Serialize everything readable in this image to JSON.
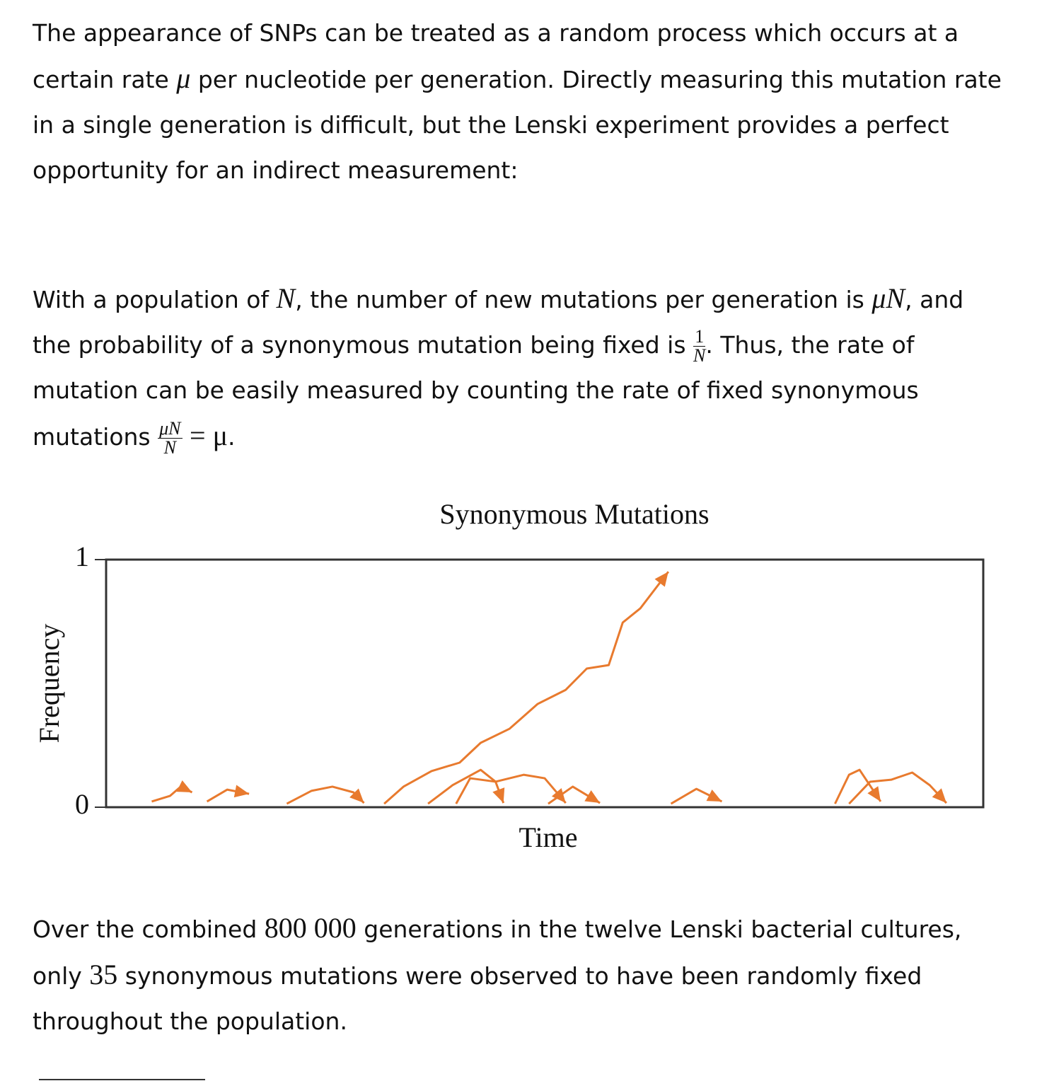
{
  "intro": {
    "text_1": "The appearance of SNPs can be treated as a random process which occurs at a certain rate ",
    "mu": "μ",
    "text_2": " per nucleotide per generation. Directly measuring this mutation rate in a single generation is difficult, but the Lenski experiment provides a perfect opportunity for an indirect measurement:"
  },
  "derivation": {
    "text_1": "With a population of ",
    "n": "N",
    "text_2": ", the number of new mutations per generation is ",
    "mu_n": "μN",
    "text_3": ", and the probability of a synonymous mutation being fixed is ",
    "fraction_1": {
      "numerator": "1",
      "denominator": "N"
    },
    "text_4": ". Thus, the rate of mutation can be easily measured by counting the rate of fixed synonymous mutations ",
    "fraction_2": {
      "numerator": "μN",
      "denominator": "N"
    },
    "equals": "= μ",
    "text_5": "."
  },
  "chart_data": {
    "type": "line",
    "title": "Synonymous Mutations",
    "x_label": "Time",
    "y_label": "Frequency",
    "ylim": [
      0,
      1
    ],
    "yticks": [
      0,
      1
    ],
    "color": "#e87a2e",
    "series": [
      {
        "x": [
          0.052,
          0.073,
          0.085,
          0.098
        ],
        "values": [
          0.023,
          0.046,
          0.083,
          0.06
        ]
      },
      {
        "x": [
          0.115,
          0.138,
          0.163
        ],
        "values": [
          0.023,
          0.071,
          0.054
        ]
      },
      {
        "x": [
          0.206,
          0.234,
          0.258,
          0.282,
          0.294
        ],
        "values": [
          0.014,
          0.066,
          0.083,
          0.06,
          0.017
        ]
      },
      {
        "x": [
          0.317,
          0.339,
          0.371,
          0.403,
          0.427,
          0.46,
          0.492,
          0.524,
          0.548,
          0.573,
          0.589,
          0.609,
          0.641
        ],
        "values": [
          0.014,
          0.083,
          0.146,
          0.18,
          0.26,
          0.317,
          0.417,
          0.474,
          0.56,
          0.574,
          0.746,
          0.803,
          0.951
        ]
      },
      {
        "x": [
          0.367,
          0.395,
          0.427,
          0.444,
          0.453
        ],
        "values": [
          0.014,
          0.089,
          0.151,
          0.103,
          0.017
        ]
      },
      {
        "x": [
          0.399,
          0.415,
          0.444,
          0.476,
          0.5,
          0.524
        ],
        "values": [
          0.014,
          0.117,
          0.103,
          0.131,
          0.117,
          0.017
        ]
      },
      {
        "x": [
          0.504,
          0.532,
          0.563
        ],
        "values": [
          0.014,
          0.083,
          0.017
        ]
      },
      {
        "x": [
          0.644,
          0.673,
          0.702
        ],
        "values": [
          0.014,
          0.074,
          0.023
        ]
      },
      {
        "x": [
          0.831,
          0.847,
          0.859,
          0.883
        ],
        "values": [
          0.014,
          0.131,
          0.151,
          0.023
        ]
      },
      {
        "x": [
          0.847,
          0.871,
          0.895,
          0.919,
          0.939,
          0.958
        ],
        "values": [
          0.014,
          0.103,
          0.111,
          0.14,
          0.089,
          0.017
        ]
      }
    ]
  },
  "conclusion": {
    "text_1": "Over the combined ",
    "generations": "800 000",
    "text_2": " generations in the twelve Lenski bacterial cultures, only ",
    "count": 35,
    "text_3": " synonymous mutations were observed to have been randomly fixed throughout the population."
  }
}
